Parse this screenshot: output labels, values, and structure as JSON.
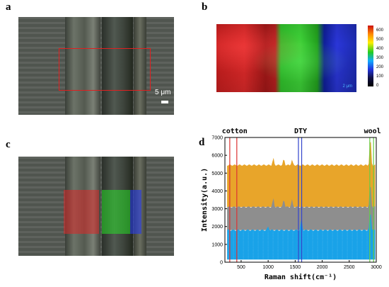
{
  "panels": {
    "a": {
      "label": "a",
      "scale_bar": "5 μm"
    },
    "b": {
      "label": "b",
      "colorbar_ticks": [
        "600",
        "500",
        "400",
        "300",
        "200",
        "100",
        "0"
      ],
      "scale_label": "2 μm"
    },
    "c": {
      "label": "c"
    },
    "d": {
      "label": "d"
    }
  },
  "colors": {
    "cotton": "#dd3333",
    "dty": "#3344cc",
    "wool": "#66cc44",
    "orange": "#e8a52a",
    "gray": "#8e8e8e",
    "blue": "#19a2e8"
  },
  "chart_data": {
    "type": "line",
    "xlabel": "Raman shift(cm⁻¹)",
    "ylabel": "Intensity(a.u.)",
    "xlim": [
      200,
      3000
    ],
    "ylim": [
      0,
      7000
    ],
    "x_ticks": [
      "500",
      "1000",
      "1500",
      "2000",
      "2500",
      "3000"
    ],
    "y_ticks": [
      "0",
      "1000",
      "2000",
      "3000",
      "4000",
      "5000",
      "6000",
      "7000"
    ],
    "annotations": [
      {
        "text": "cotton",
        "x": 380
      },
      {
        "text": "DTY",
        "x": 1600
      },
      {
        "text": "wool",
        "x": 2930
      }
    ],
    "marker_lines": [
      {
        "group": "cotton",
        "x": [
          290,
          420
        ]
      },
      {
        "group": "DTY",
        "x": [
          1560,
          1620
        ]
      },
      {
        "group": "wool",
        "x": [
          2880,
          2950
        ]
      }
    ],
    "series": [
      {
        "band_low": 3100,
        "band_high": 5450,
        "peaks": [
          [
            1095,
            400
          ],
          [
            1290,
            350
          ],
          [
            1440,
            300
          ],
          [
            2890,
            1700
          ]
        ]
      },
      {
        "band_low": 1800,
        "band_high": 3100,
        "peaks": [
          [
            1095,
            500
          ],
          [
            1290,
            450
          ],
          [
            1440,
            400
          ],
          [
            2890,
            1500
          ]
        ]
      },
      {
        "band_low": 150,
        "band_high": 1800,
        "peaks": [
          [
            1615,
            700
          ],
          [
            1000,
            200
          ],
          [
            2890,
            1200
          ]
        ]
      }
    ]
  }
}
